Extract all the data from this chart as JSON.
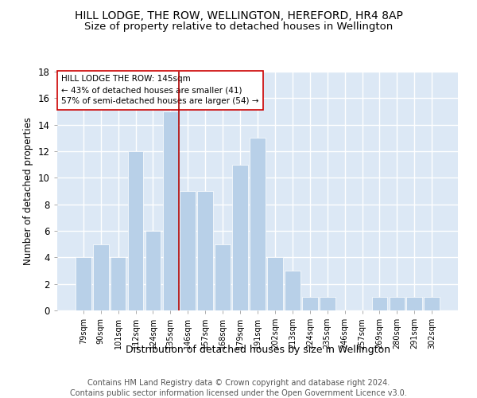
{
  "title": "HILL LODGE, THE ROW, WELLINGTON, HEREFORD, HR4 8AP",
  "subtitle": "Size of property relative to detached houses in Wellington",
  "xlabel": "Distribution of detached houses by size in Wellington",
  "ylabel": "Number of detached properties",
  "footnote1": "Contains HM Land Registry data © Crown copyright and database right 2024.",
  "footnote2": "Contains public sector information licensed under the Open Government Licence v3.0.",
  "annotation_line1": "HILL LODGE THE ROW: 145sqm",
  "annotation_line2": "← 43% of detached houses are smaller (41)",
  "annotation_line3": "57% of semi-detached houses are larger (54) →",
  "bar_color": "#b8d0e8",
  "bar_edge_color": "#ffffff",
  "ref_line_color": "#aa0000",
  "categories": [
    "79sqm",
    "90sqm",
    "101sqm",
    "112sqm",
    "124sqm",
    "135sqm",
    "146sqm",
    "157sqm",
    "168sqm",
    "179sqm",
    "191sqm",
    "202sqm",
    "213sqm",
    "224sqm",
    "235sqm",
    "246sqm",
    "257sqm",
    "269sqm",
    "280sqm",
    "291sqm",
    "302sqm"
  ],
  "values": [
    4,
    5,
    4,
    12,
    6,
    15,
    9,
    9,
    5,
    11,
    13,
    4,
    3,
    1,
    1,
    0,
    0,
    1,
    1,
    1,
    1
  ],
  "ylim": [
    0,
    18
  ],
  "yticks": [
    0,
    2,
    4,
    6,
    8,
    10,
    12,
    14,
    16,
    18
  ],
  "bg_color": "#dce8f5",
  "grid_color": "#ffffff",
  "title_fontsize": 10,
  "subtitle_fontsize": 9.5,
  "annotation_box_color": "#ffffff",
  "annotation_box_edge": "#cc0000",
  "footnote_color": "#555555"
}
